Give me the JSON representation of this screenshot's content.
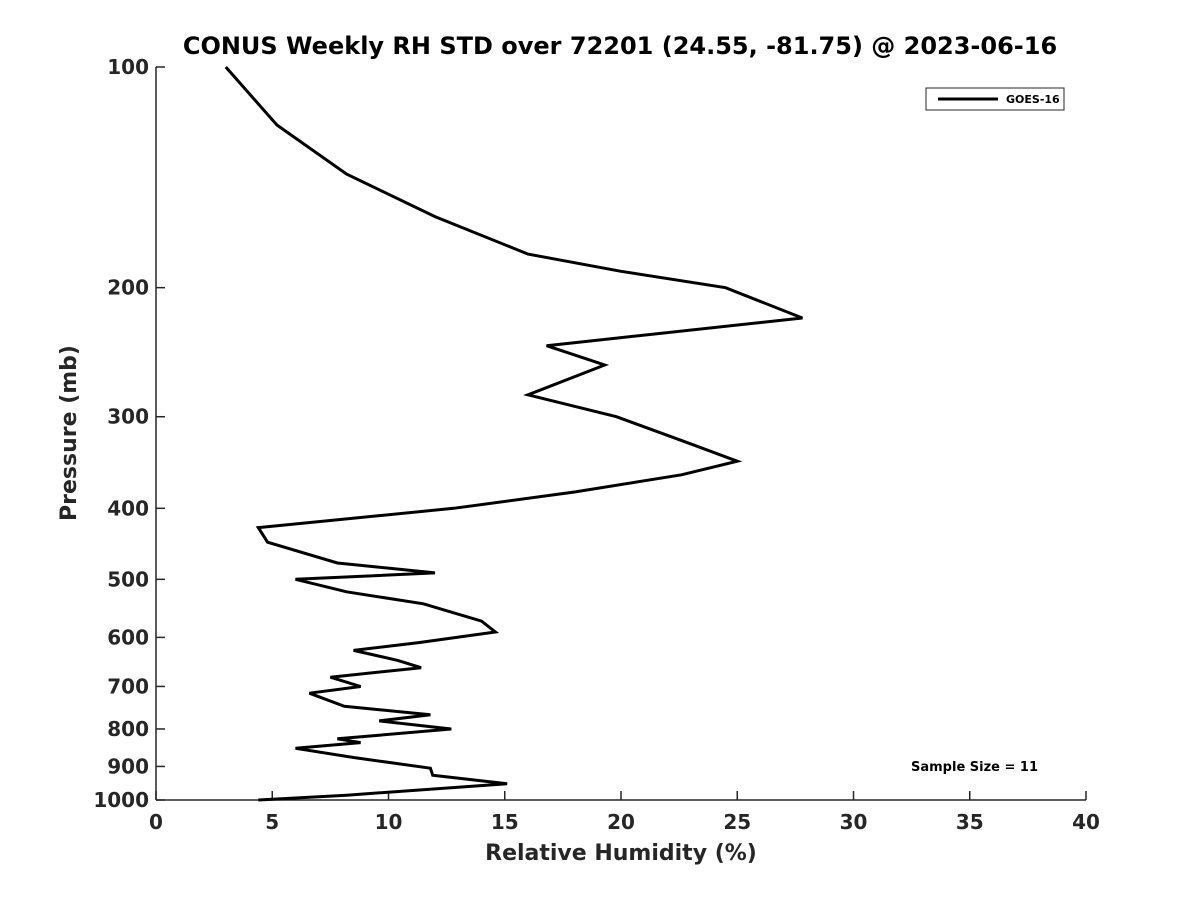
{
  "chart_data": {
    "type": "line",
    "title": "CONUS Weekly RH STD over 72201 (24.55, -81.75) @ 2023-06-16",
    "xlabel": "Relative Humidity (%)",
    "ylabel": "Pressure (mb)",
    "xlim": [
      0,
      40
    ],
    "ylim": [
      1000,
      100
    ],
    "yscale": "log",
    "x_ticks": [
      0,
      5,
      10,
      15,
      20,
      25,
      30,
      35,
      40
    ],
    "x_tick_labels": [
      "0",
      "5",
      "10",
      "15",
      "20",
      "25",
      "30",
      "35",
      "40"
    ],
    "y_ticks": [
      100,
      200,
      300,
      400,
      500,
      600,
      700,
      800,
      900,
      1000
    ],
    "y_tick_labels": [
      "100",
      "200",
      "300",
      "400",
      "500",
      "600",
      "700",
      "800",
      "900",
      "1000"
    ],
    "grid": false,
    "legend_position": "top-right",
    "annotation": "Sample Size = 11",
    "series": [
      {
        "name": "GOES-16",
        "color": "#000000",
        "points": [
          [
            3.0,
            100
          ],
          [
            5.2,
            120
          ],
          [
            8.2,
            140
          ],
          [
            12.0,
            160
          ],
          [
            16.0,
            180
          ],
          [
            20.0,
            190
          ],
          [
            24.5,
            200
          ],
          [
            27.8,
            220
          ],
          [
            16.8,
            240
          ],
          [
            19.3,
            255
          ],
          [
            16.0,
            280
          ],
          [
            19.8,
            300
          ],
          [
            22.8,
            325
          ],
          [
            25.0,
            345
          ],
          [
            22.6,
            360
          ],
          [
            18.0,
            380
          ],
          [
            12.8,
            400
          ],
          [
            4.4,
            425
          ],
          [
            4.8,
            445
          ],
          [
            7.8,
            475
          ],
          [
            12.0,
            490
          ],
          [
            6.0,
            500
          ],
          [
            8.2,
            520
          ],
          [
            11.5,
            540
          ],
          [
            14.0,
            570
          ],
          [
            14.6,
            590
          ],
          [
            11.3,
            610
          ],
          [
            8.5,
            625
          ],
          [
            10.4,
            645
          ],
          [
            11.4,
            660
          ],
          [
            7.5,
            680
          ],
          [
            8.8,
            700
          ],
          [
            6.6,
            715
          ],
          [
            8.1,
            745
          ],
          [
            11.8,
            765
          ],
          [
            9.6,
            780
          ],
          [
            12.7,
            800
          ],
          [
            7.8,
            825
          ],
          [
            8.8,
            835
          ],
          [
            6.0,
            850
          ],
          [
            8.5,
            875
          ],
          [
            11.8,
            905
          ],
          [
            11.9,
            925
          ],
          [
            15.1,
            950
          ],
          [
            8.2,
            985
          ],
          [
            4.4,
            1000
          ]
        ]
      }
    ]
  }
}
